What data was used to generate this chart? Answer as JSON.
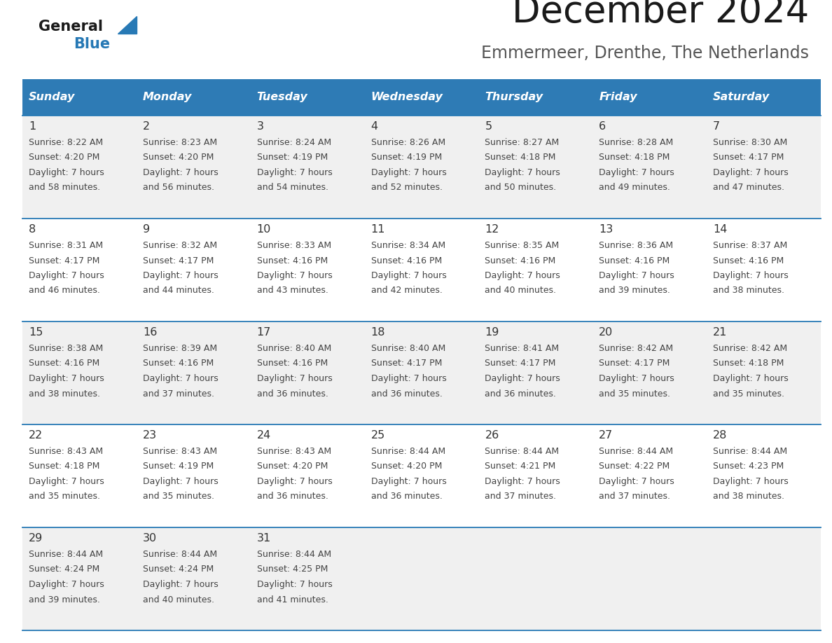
{
  "title": "December 2024",
  "subtitle": "Emmermeer, Drenthe, The Netherlands",
  "header_bg": "#2E7BB5",
  "header_text_color": "#FFFFFF",
  "day_names": [
    "Sunday",
    "Monday",
    "Tuesday",
    "Wednesday",
    "Thursday",
    "Friday",
    "Saturday"
  ],
  "weeks": [
    [
      {
        "day": 1,
        "sunrise": "8:22 AM",
        "sunset": "4:20 PM",
        "daylight": "7 hours and 58 minutes."
      },
      {
        "day": 2,
        "sunrise": "8:23 AM",
        "sunset": "4:20 PM",
        "daylight": "7 hours and 56 minutes."
      },
      {
        "day": 3,
        "sunrise": "8:24 AM",
        "sunset": "4:19 PM",
        "daylight": "7 hours and 54 minutes."
      },
      {
        "day": 4,
        "sunrise": "8:26 AM",
        "sunset": "4:19 PM",
        "daylight": "7 hours and 52 minutes."
      },
      {
        "day": 5,
        "sunrise": "8:27 AM",
        "sunset": "4:18 PM",
        "daylight": "7 hours and 50 minutes."
      },
      {
        "day": 6,
        "sunrise": "8:28 AM",
        "sunset": "4:18 PM",
        "daylight": "7 hours and 49 minutes."
      },
      {
        "day": 7,
        "sunrise": "8:30 AM",
        "sunset": "4:17 PM",
        "daylight": "7 hours and 47 minutes."
      }
    ],
    [
      {
        "day": 8,
        "sunrise": "8:31 AM",
        "sunset": "4:17 PM",
        "daylight": "7 hours and 46 minutes."
      },
      {
        "day": 9,
        "sunrise": "8:32 AM",
        "sunset": "4:17 PM",
        "daylight": "7 hours and 44 minutes."
      },
      {
        "day": 10,
        "sunrise": "8:33 AM",
        "sunset": "4:16 PM",
        "daylight": "7 hours and 43 minutes."
      },
      {
        "day": 11,
        "sunrise": "8:34 AM",
        "sunset": "4:16 PM",
        "daylight": "7 hours and 42 minutes."
      },
      {
        "day": 12,
        "sunrise": "8:35 AM",
        "sunset": "4:16 PM",
        "daylight": "7 hours and 40 minutes."
      },
      {
        "day": 13,
        "sunrise": "8:36 AM",
        "sunset": "4:16 PM",
        "daylight": "7 hours and 39 minutes."
      },
      {
        "day": 14,
        "sunrise": "8:37 AM",
        "sunset": "4:16 PM",
        "daylight": "7 hours and 38 minutes."
      }
    ],
    [
      {
        "day": 15,
        "sunrise": "8:38 AM",
        "sunset": "4:16 PM",
        "daylight": "7 hours and 38 minutes."
      },
      {
        "day": 16,
        "sunrise": "8:39 AM",
        "sunset": "4:16 PM",
        "daylight": "7 hours and 37 minutes."
      },
      {
        "day": 17,
        "sunrise": "8:40 AM",
        "sunset": "4:16 PM",
        "daylight": "7 hours and 36 minutes."
      },
      {
        "day": 18,
        "sunrise": "8:40 AM",
        "sunset": "4:17 PM",
        "daylight": "7 hours and 36 minutes."
      },
      {
        "day": 19,
        "sunrise": "8:41 AM",
        "sunset": "4:17 PM",
        "daylight": "7 hours and 36 minutes."
      },
      {
        "day": 20,
        "sunrise": "8:42 AM",
        "sunset": "4:17 PM",
        "daylight": "7 hours and 35 minutes."
      },
      {
        "day": 21,
        "sunrise": "8:42 AM",
        "sunset": "4:18 PM",
        "daylight": "7 hours and 35 minutes."
      }
    ],
    [
      {
        "day": 22,
        "sunrise": "8:43 AM",
        "sunset": "4:18 PM",
        "daylight": "7 hours and 35 minutes."
      },
      {
        "day": 23,
        "sunrise": "8:43 AM",
        "sunset": "4:19 PM",
        "daylight": "7 hours and 35 minutes."
      },
      {
        "day": 24,
        "sunrise": "8:43 AM",
        "sunset": "4:20 PM",
        "daylight": "7 hours and 36 minutes."
      },
      {
        "day": 25,
        "sunrise": "8:44 AM",
        "sunset": "4:20 PM",
        "daylight": "7 hours and 36 minutes."
      },
      {
        "day": 26,
        "sunrise": "8:44 AM",
        "sunset": "4:21 PM",
        "daylight": "7 hours and 37 minutes."
      },
      {
        "day": 27,
        "sunrise": "8:44 AM",
        "sunset": "4:22 PM",
        "daylight": "7 hours and 37 minutes."
      },
      {
        "day": 28,
        "sunrise": "8:44 AM",
        "sunset": "4:23 PM",
        "daylight": "7 hours and 38 minutes."
      }
    ],
    [
      {
        "day": 29,
        "sunrise": "8:44 AM",
        "sunset": "4:24 PM",
        "daylight": "7 hours and 39 minutes."
      },
      {
        "day": 30,
        "sunrise": "8:44 AM",
        "sunset": "4:24 PM",
        "daylight": "7 hours and 40 minutes."
      },
      {
        "day": 31,
        "sunrise": "8:44 AM",
        "sunset": "4:25 PM",
        "daylight": "7 hours and 41 minutes."
      },
      null,
      null,
      null,
      null
    ]
  ],
  "logo_general_color": "#1a1a1a",
  "logo_blue_color": "#2779B5",
  "cell_bg_white": "#FFFFFF",
  "cell_bg_gray": "#F0F0F0",
  "border_color": "#2779B5",
  "text_color": "#444444",
  "day_number_color": "#333333",
  "title_color": "#1a1a1a",
  "subtitle_color": "#555555"
}
